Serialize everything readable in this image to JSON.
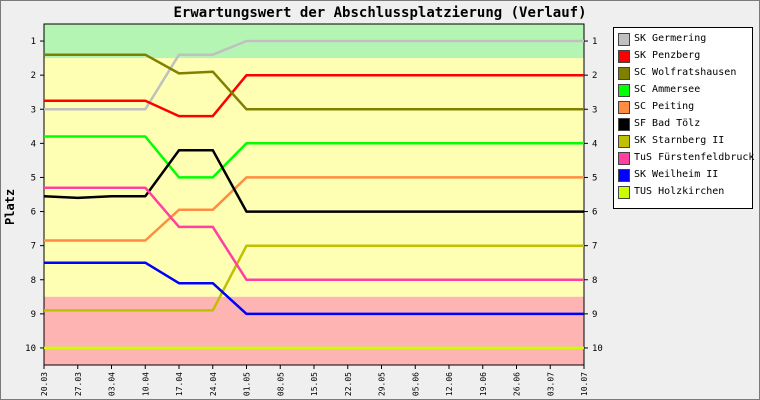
{
  "title": "Erwartungswert der Abschlussplatzierung (Verlauf)",
  "chart_data": {
    "type": "line",
    "title": "Erwartungswert der Abschlussplatzierung (Verlauf)",
    "ylabel": "Platz",
    "xlabel": "",
    "y_inverted": true,
    "ylim": [
      0.5,
      10.5
    ],
    "y_ticks": [
      "1",
      "2",
      "3",
      "4",
      "5",
      "6",
      "7",
      "8",
      "9",
      "10"
    ],
    "x": [
      "20.03",
      "27.03",
      "03.04",
      "10.04",
      "17.04",
      "24.04",
      "01.05",
      "08.05",
      "15.05",
      "22.05",
      "29.05",
      "05.06",
      "12.06",
      "19.06",
      "26.06",
      "03.07",
      "10.07"
    ],
    "background_bands": [
      {
        "from": 0.5,
        "to": 1.5,
        "color": "#b4f5b4"
      },
      {
        "from": 1.5,
        "to": 8.5,
        "color": "#ffffb4"
      },
      {
        "from": 8.5,
        "to": 10.5,
        "color": "#ffb4b4"
      }
    ],
    "grid": false,
    "legend_position": "right",
    "series": [
      {
        "name": "SK Germering",
        "color": "#c0c0c0",
        "values": [
          3.0,
          3.0,
          3.0,
          3.0,
          1.4,
          1.4,
          1.0,
          1.0,
          1.0,
          1.0,
          1.0,
          1.0,
          1.0,
          1.0,
          1.0,
          1.0,
          1.0
        ]
      },
      {
        "name": "SK Penzberg",
        "color": "#ff0000",
        "values": [
          2.75,
          2.75,
          2.75,
          2.75,
          3.2,
          3.2,
          2.0,
          2.0,
          2.0,
          2.0,
          2.0,
          2.0,
          2.0,
          2.0,
          2.0,
          2.0,
          2.0
        ]
      },
      {
        "name": "SC Wolfratshausen",
        "color": "#808000",
        "values": [
          1.4,
          1.4,
          1.4,
          1.4,
          1.95,
          1.9,
          3.0,
          3.0,
          3.0,
          3.0,
          3.0,
          3.0,
          3.0,
          3.0,
          3.0,
          3.0,
          3.0
        ]
      },
      {
        "name": "SC Ammersee",
        "color": "#00ff00",
        "values": [
          3.8,
          3.8,
          3.8,
          3.8,
          5.0,
          5.0,
          4.0,
          4.0,
          4.0,
          4.0,
          4.0,
          4.0,
          4.0,
          4.0,
          4.0,
          4.0,
          4.0
        ]
      },
      {
        "name": "SC Peiting",
        "color": "#ff8c40",
        "values": [
          6.85,
          6.85,
          6.85,
          6.85,
          5.95,
          5.95,
          5.0,
          5.0,
          5.0,
          5.0,
          5.0,
          5.0,
          5.0,
          5.0,
          5.0,
          5.0,
          5.0
        ]
      },
      {
        "name": "SF Bad Tölz",
        "color": "#000000",
        "values": [
          5.55,
          5.6,
          5.55,
          5.55,
          4.2,
          4.2,
          6.0,
          6.0,
          6.0,
          6.0,
          6.0,
          6.0,
          6.0,
          6.0,
          6.0,
          6.0,
          6.0
        ]
      },
      {
        "name": "SK Starnberg II",
        "color": "#c0c000",
        "values": [
          8.9,
          8.9,
          8.9,
          8.9,
          8.9,
          8.9,
          7.0,
          7.0,
          7.0,
          7.0,
          7.0,
          7.0,
          7.0,
          7.0,
          7.0,
          7.0,
          7.0
        ]
      },
      {
        "name": "TuS Fürstenfeldbruck",
        "color": "#ff40a0",
        "values": [
          5.3,
          5.3,
          5.3,
          5.3,
          6.45,
          6.45,
          8.0,
          8.0,
          8.0,
          8.0,
          8.0,
          8.0,
          8.0,
          8.0,
          8.0,
          8.0,
          8.0
        ]
      },
      {
        "name": "SK Weilheim II",
        "color": "#0000ff",
        "values": [
          7.5,
          7.5,
          7.5,
          7.5,
          8.1,
          8.1,
          9.0,
          9.0,
          9.0,
          9.0,
          9.0,
          9.0,
          9.0,
          9.0,
          9.0,
          9.0,
          9.0
        ]
      },
      {
        "name": "TUS Holzkirchen",
        "color": "#ccff00",
        "values": [
          10.0,
          10.0,
          10.0,
          10.0,
          10.0,
          10.0,
          10.0,
          10.0,
          10.0,
          10.0,
          10.0,
          10.0,
          10.0,
          10.0,
          10.0,
          10.0,
          10.0
        ]
      }
    ]
  }
}
